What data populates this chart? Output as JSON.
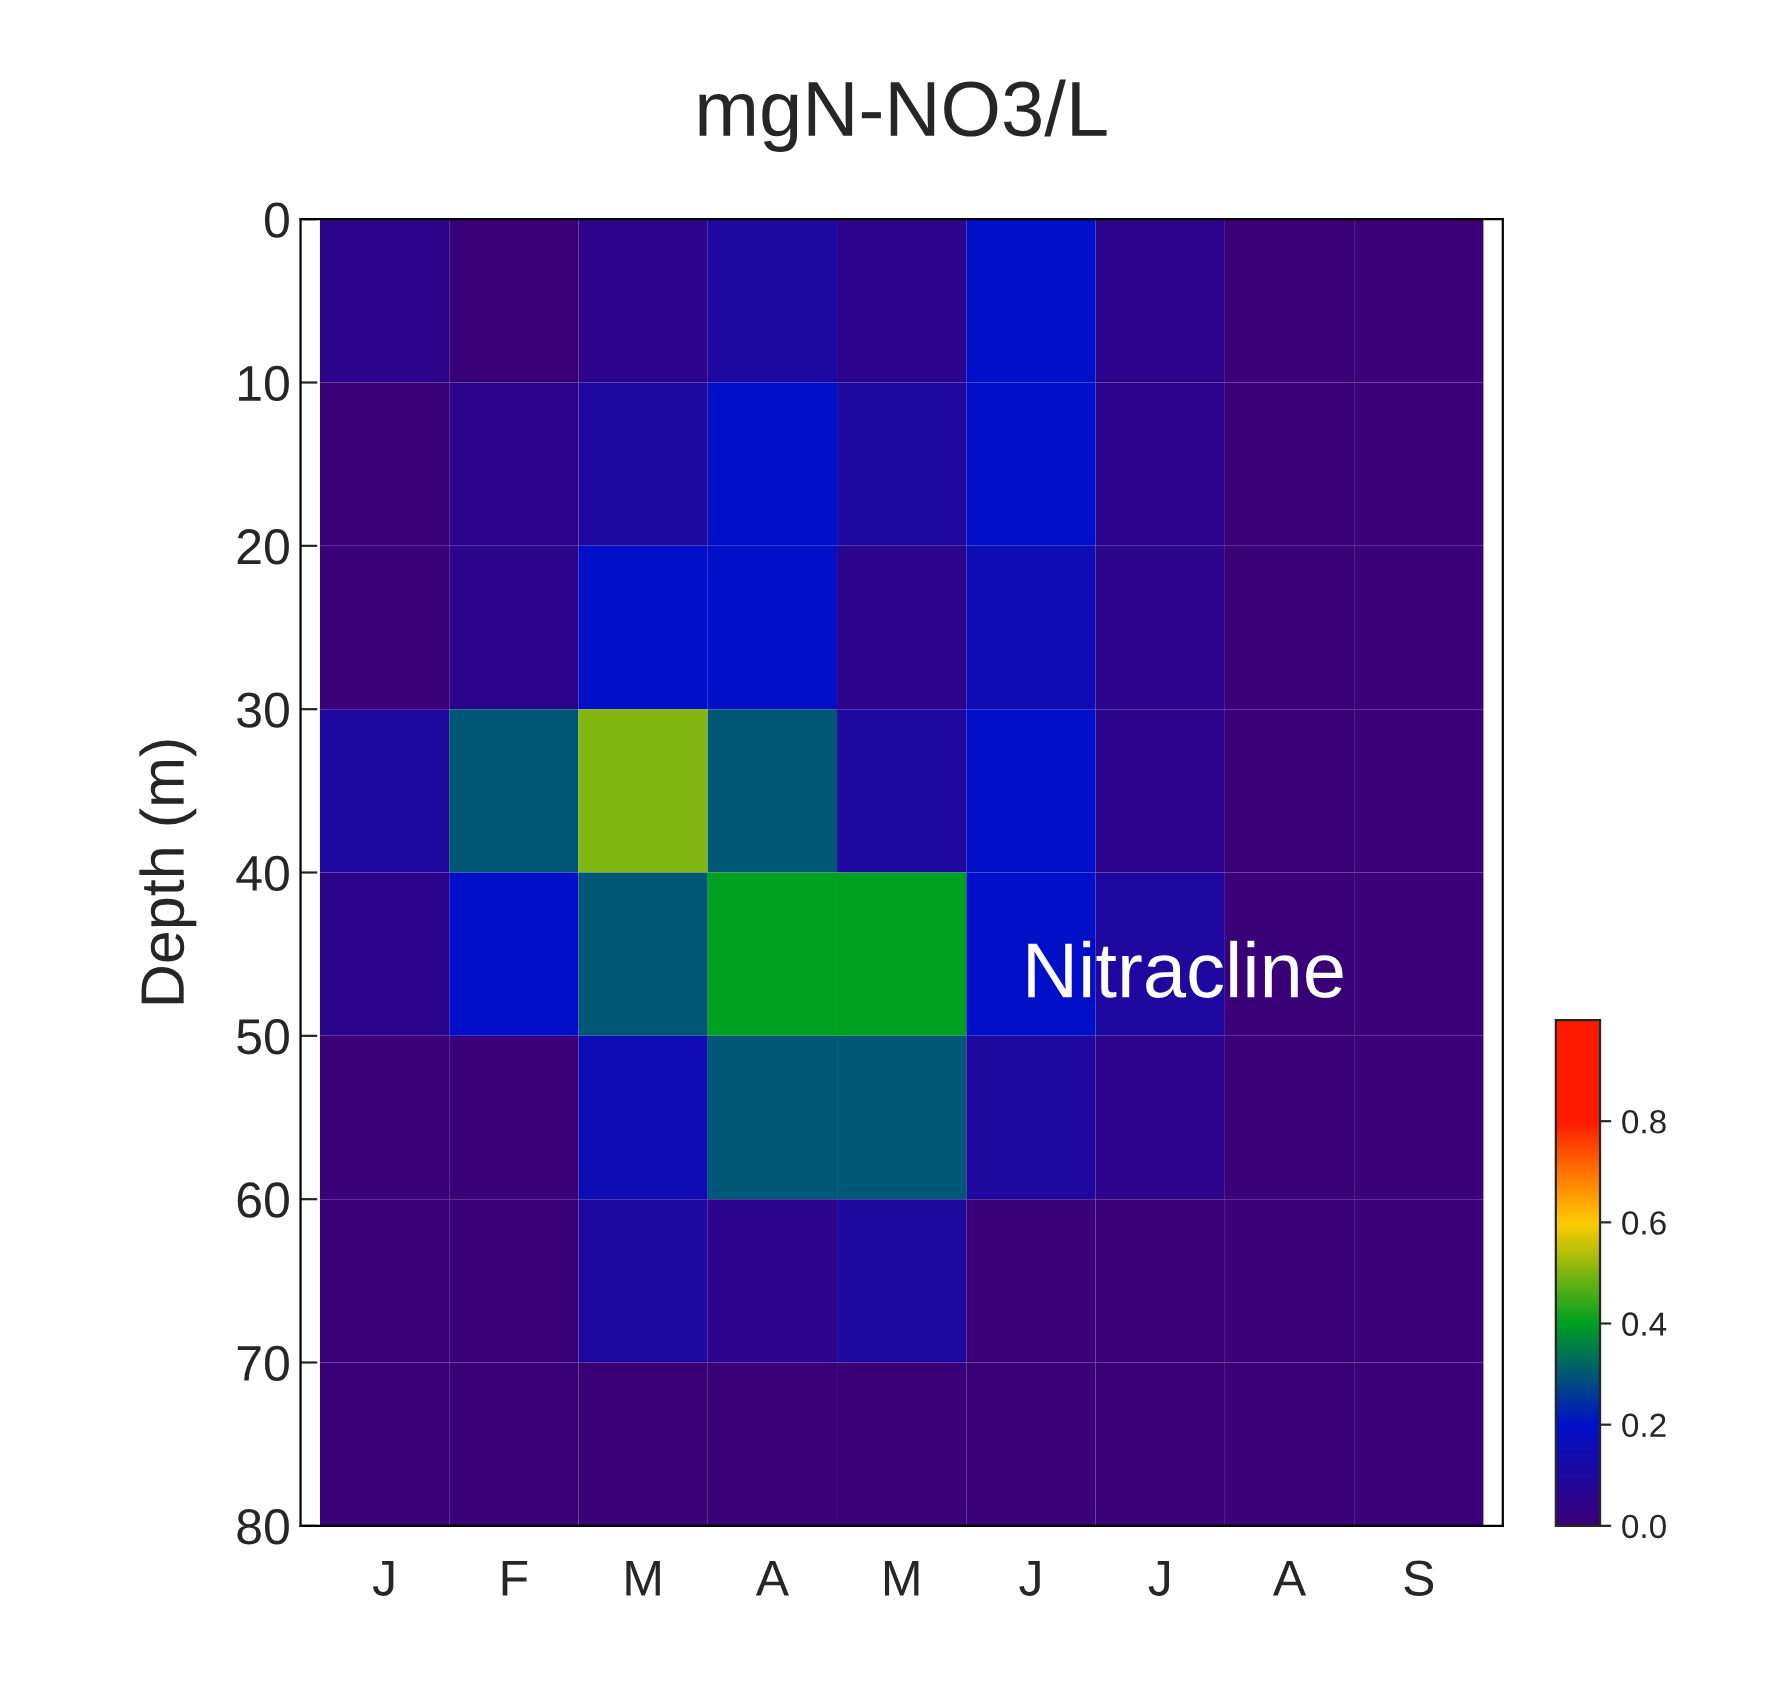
{
  "chart_data": {
    "type": "heatmap",
    "title": "mgN-NO3/L",
    "ylabel": "Depth (m)",
    "categories": [
      "J",
      "F",
      "M",
      "A",
      "M",
      "J",
      "J",
      "A",
      "S"
    ],
    "cells": [
      [
        0.05,
        0.0,
        0.05,
        0.1,
        0.05,
        0.2,
        0.05,
        0.0,
        0.0
      ],
      [
        0.0,
        0.05,
        0.1,
        0.2,
        0.1,
        0.2,
        0.05,
        0.0,
        0.0
      ],
      [
        0.0,
        0.05,
        0.2,
        0.2,
        0.05,
        0.15,
        0.05,
        0.0,
        0.0
      ],
      [
        0.1,
        0.3,
        0.5,
        0.3,
        0.1,
        0.2,
        0.05,
        0.0,
        0.0
      ],
      [
        0.05,
        0.2,
        0.3,
        0.4,
        0.4,
        0.2,
        0.1,
        0.0,
        0.0
      ],
      [
        0.0,
        0.0,
        0.15,
        0.3,
        0.3,
        0.1,
        0.05,
        0.0,
        0.0
      ],
      [
        0.0,
        0.0,
        0.1,
        0.05,
        0.1,
        0.0,
        0.0,
        0.0,
        0.0
      ],
      [
        0.0,
        0.0,
        0.0,
        0.0,
        0.0,
        0.0,
        0.0,
        0.0,
        0.0
      ]
    ],
    "ylim": [
      80,
      0
    ],
    "yticks": [
      0,
      10,
      20,
      30,
      40,
      50,
      60,
      70,
      80
    ],
    "clim": [
      0,
      1
    ],
    "cticks": [
      {
        "value": 0,
        "label": "0.0"
      },
      {
        "value": 0.2,
        "label": "0.2"
      },
      {
        "value": 0.4,
        "label": "0.4"
      },
      {
        "value": 0.6,
        "label": "0.6"
      },
      {
        "value": 0.8,
        "label": "0.8"
      }
    ],
    "colors": [
      "#3a0078",
      "#0010c8",
      "#00a020",
      "#ffcc00",
      "#ff1a00"
    ],
    "grid": false,
    "annotations": [
      "Nitracline"
    ]
  }
}
